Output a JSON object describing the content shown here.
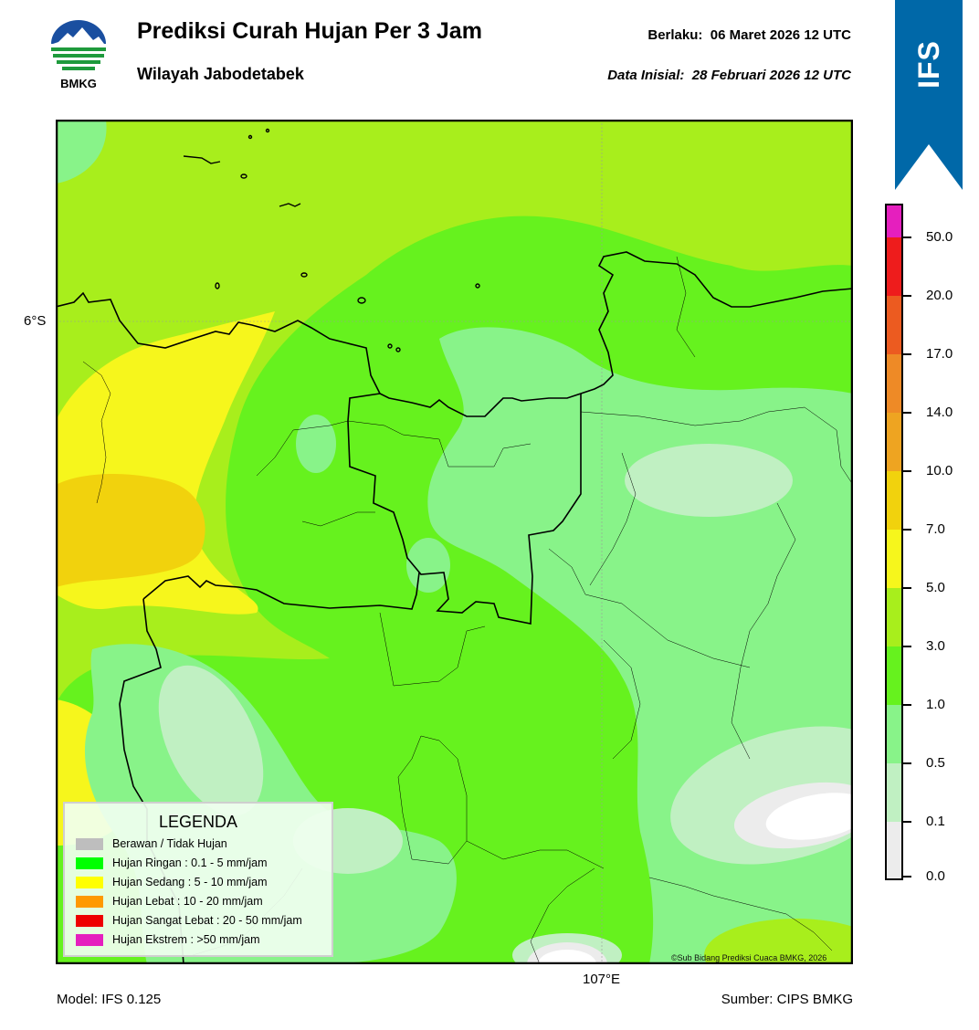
{
  "header": {
    "title": "Prediksi Curah Hujan Per 3 Jam",
    "subtitle": "Wilayah Jabodetabek",
    "valid_label": "Berlaku:",
    "valid_date": "06 Maret 2026 12 UTC",
    "init_label": "Data Inisial:",
    "init_date": "28 Februari 2026 12 UTC"
  },
  "logo": {
    "text": "BMKG",
    "icon": "bmkg-logo-icon"
  },
  "ribbon": {
    "text": "IFS",
    "color": "#0068a8"
  },
  "map": {
    "lat_label": "6°S",
    "lon_label": "107°E",
    "copyright": "©Sub Bidang Prediksi Cuaca BMKG, 2026"
  },
  "footer": {
    "model": "Model: IFS 0.125",
    "source": "Sumber: CIPS BMKG"
  },
  "legend": {
    "title": "LEGENDA",
    "items": [
      {
        "label": "Berawan / Tidak Hujan",
        "color": "#bebebe"
      },
      {
        "label": "Hujan Ringan : 0.1 - 5 mm/jam",
        "color": "#00ff00"
      },
      {
        "label": "Hujan Sedang : 5 - 10 mm/jam",
        "color": "#ffff00"
      },
      {
        "label": "Hujan Lebat : 10 - 20 mm/jam",
        "color": "#ff9900"
      },
      {
        "label": "Hujan Sangat Lebat : 20 - 50 mm/jam",
        "color": "#ee0000"
      },
      {
        "label": "Hujan Ekstrem : >50 mm/jam",
        "color": "#e51fbe"
      }
    ]
  },
  "colorbar": {
    "labels": [
      "50.0",
      "20.0",
      "17.0",
      "14.0",
      "10.0",
      "7.0",
      "5.0",
      "3.0",
      "1.0",
      "0.5",
      "0.1",
      "0.0"
    ],
    "colors_top_to_bottom": [
      "#e51fbe",
      "#ee1c1c",
      "#ec5b20",
      "#ee8a26",
      "#eea421",
      "#f1d20d",
      "#f6f61c",
      "#a8ee1c",
      "#66f21e",
      "#88f389",
      "#c0f0c2",
      "#ececec"
    ]
  },
  "rain_colors": {
    "none": "#ffffff",
    "r00": "#ececec",
    "r01": "#c0f0c2",
    "r05": "#88f389",
    "r10": "#66f21e",
    "r30": "#a8ee1c",
    "r50": "#f6f61c",
    "r70": "#f1d20d"
  }
}
